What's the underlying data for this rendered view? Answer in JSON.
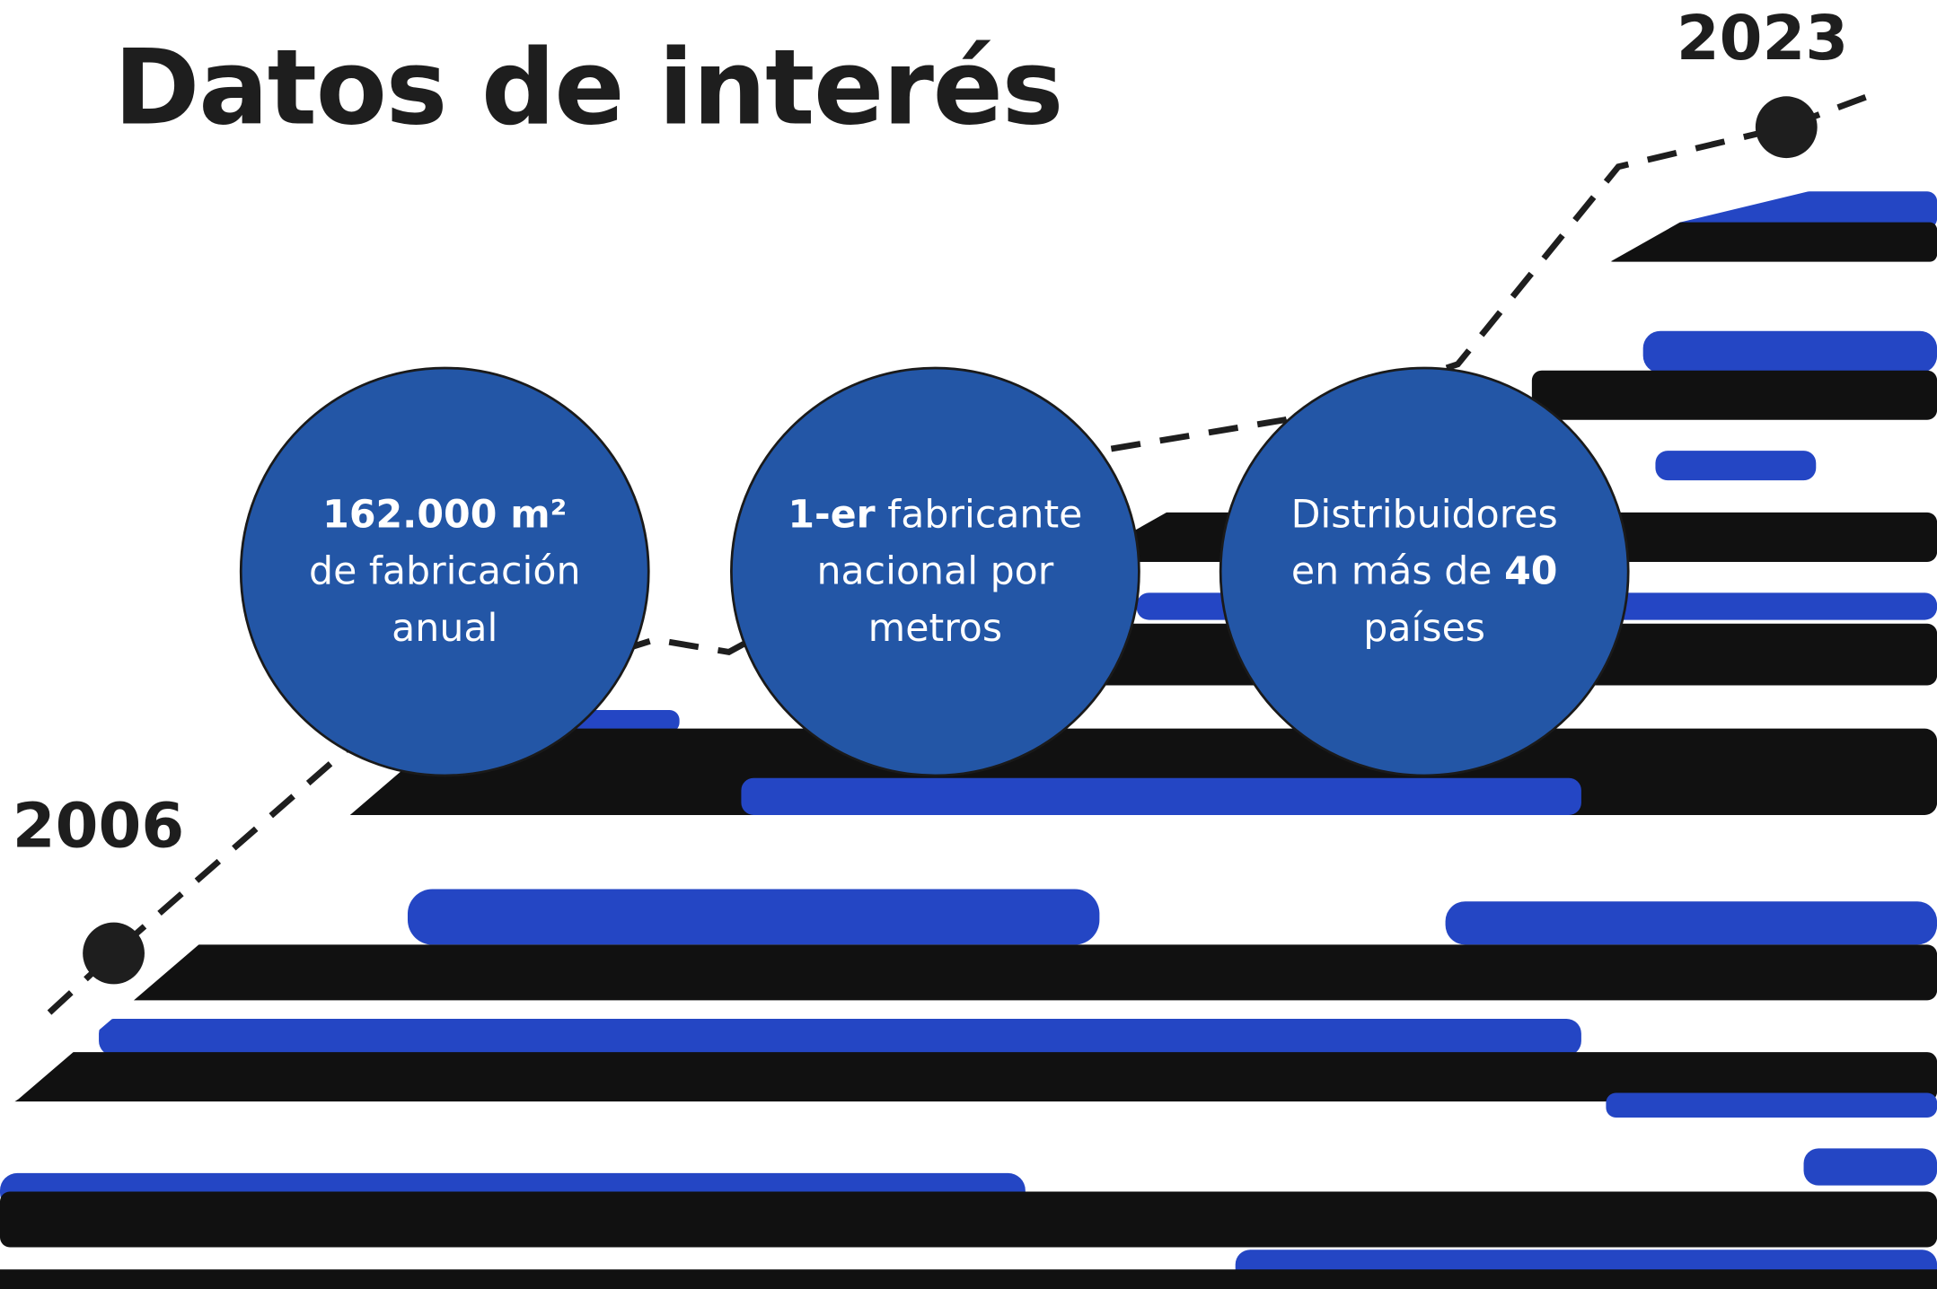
{
  "title": "Datos de interés",
  "timeline": {
    "start": "2006",
    "end": "2023"
  },
  "facts": [
    {
      "parts": [
        {
          "text": "162.000 m²",
          "bold": true
        },
        {
          "text": "de fabricación anual"
        }
      ]
    },
    {
      "parts": [
        {
          "text": "1-er",
          "bold": true
        },
        {
          "text": "fabricante nacional por metros"
        }
      ]
    },
    {
      "parts": [
        {
          "text": "Distribuidores en más de"
        },
        {
          "text": "40",
          "bold": true
        },
        {
          "text": "países"
        }
      ]
    }
  ]
}
